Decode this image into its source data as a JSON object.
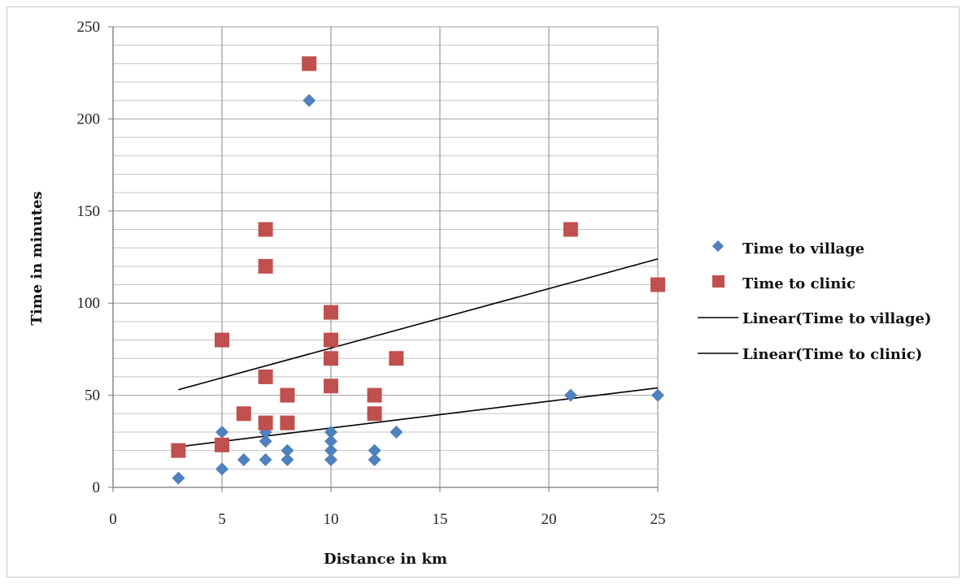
{
  "chart_data": {
    "type": "scatter",
    "title": "",
    "xlabel": "Distance in km",
    "ylabel": "Time in minutes",
    "xlim": [
      0,
      25
    ],
    "ylim": [
      0,
      250
    ],
    "xticks": [
      0,
      5,
      10,
      15,
      20,
      25
    ],
    "yticks": [
      0,
      50,
      100,
      150,
      200,
      250
    ],
    "y_minor_step": 10,
    "grid": true,
    "legend_position": "right",
    "series": [
      {
        "name": "Time to village",
        "marker": "diamond",
        "color": "#4f81bd",
        "points": [
          {
            "x": 3,
            "y": 5
          },
          {
            "x": 5,
            "y": 10
          },
          {
            "x": 5,
            "y": 30
          },
          {
            "x": 6,
            "y": 15
          },
          {
            "x": 7,
            "y": 15
          },
          {
            "x": 7,
            "y": 25
          },
          {
            "x": 7,
            "y": 30
          },
          {
            "x": 8,
            "y": 15
          },
          {
            "x": 8,
            "y": 20
          },
          {
            "x": 9,
            "y": 210
          },
          {
            "x": 10,
            "y": 15
          },
          {
            "x": 10,
            "y": 20
          },
          {
            "x": 10,
            "y": 25
          },
          {
            "x": 10,
            "y": 30
          },
          {
            "x": 12,
            "y": 15
          },
          {
            "x": 12,
            "y": 20
          },
          {
            "x": 13,
            "y": 30
          },
          {
            "x": 21,
            "y": 50
          },
          {
            "x": 25,
            "y": 50
          }
        ]
      },
      {
        "name": "Time to clinic",
        "marker": "square",
        "color": "#c0504d",
        "points": [
          {
            "x": 3,
            "y": 20
          },
          {
            "x": 5,
            "y": 23
          },
          {
            "x": 5,
            "y": 80
          },
          {
            "x": 6,
            "y": 40
          },
          {
            "x": 7,
            "y": 35
          },
          {
            "x": 7,
            "y": 60
          },
          {
            "x": 7,
            "y": 120
          },
          {
            "x": 7,
            "y": 140
          },
          {
            "x": 8,
            "y": 35
          },
          {
            "x": 8,
            "y": 50
          },
          {
            "x": 9,
            "y": 230
          },
          {
            "x": 10,
            "y": 55
          },
          {
            "x": 10,
            "y": 70
          },
          {
            "x": 10,
            "y": 80
          },
          {
            "x": 10,
            "y": 95
          },
          {
            "x": 12,
            "y": 40
          },
          {
            "x": 12,
            "y": 50
          },
          {
            "x": 13,
            "y": 70
          },
          {
            "x": 21,
            "y": 140
          },
          {
            "x": 25,
            "y": 110
          }
        ]
      }
    ],
    "trendlines": [
      {
        "name": "Linear(Time to village)",
        "color": "#000000",
        "x": [
          3,
          25
        ],
        "y": [
          22,
          54
        ]
      },
      {
        "name": "Linear(Time to clinic)",
        "color": "#000000",
        "x": [
          3,
          25
        ],
        "y": [
          53,
          124
        ]
      }
    ]
  }
}
